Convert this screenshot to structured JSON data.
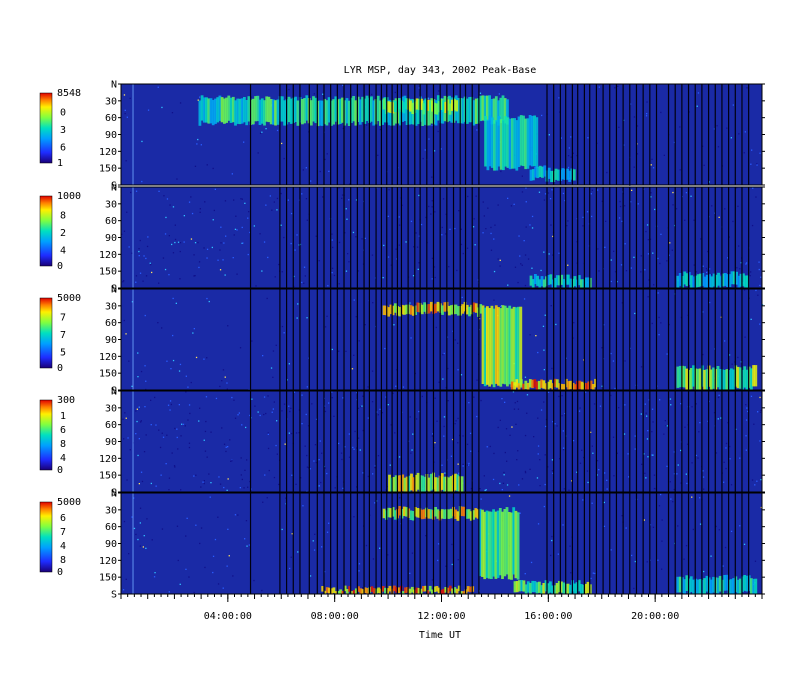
{
  "chart_data": {
    "type": "heatmap",
    "title": "LYR MSP, day 343, 2002 Peak-Base",
    "xlabel": "Time UT",
    "xlim_hours": [
      0,
      24
    ],
    "x_ticks": [
      {
        "hour": 4,
        "label": "04:00:00"
      },
      {
        "hour": 8,
        "label": "08:00:00"
      },
      {
        "hour": 12,
        "label": "12:00:00"
      },
      {
        "hour": 16,
        "label": "16:00:00"
      },
      {
        "hour": 20,
        "label": "20:00:00"
      }
    ],
    "y_labels": [
      {
        "value": "N",
        "deg": 0
      },
      {
        "value": "30",
        "deg": 30
      },
      {
        "value": "60",
        "deg": 60
      },
      {
        "value": "90",
        "deg": 90
      },
      {
        "value": "120",
        "deg": 120
      },
      {
        "value": "150",
        "deg": 150
      },
      {
        "value": "S",
        "deg": 180
      }
    ],
    "colorscale": [
      "#1a0078",
      "#1e2cff",
      "#00a0ff",
      "#00e0c0",
      "#80ff40",
      "#fff000",
      "#ff8000",
      "#e00000"
    ],
    "background_color": "#1a2aa6",
    "panels": [
      {
        "colorbar_max": "8548",
        "colorbar_min": "1",
        "colorbar_mid_labels": [
          "0",
          "3",
          "6"
        ],
        "noise": 0.18,
        "features": [
          {
            "t0": 2.9,
            "t1": 14.5,
            "lat0": 25,
            "lat1": 70,
            "level": 0.55
          },
          {
            "t0": 9.8,
            "t1": 12.6,
            "lat0": 30,
            "lat1": 50,
            "level": 0.75
          },
          {
            "t0": 13.6,
            "t1": 15.6,
            "lat0": 60,
            "lat1": 150,
            "level": 0.5
          },
          {
            "t0": 15.3,
            "t1": 17.0,
            "lat0": 150,
            "lat1": 170,
            "level": 0.45
          }
        ]
      },
      {
        "colorbar_max": "1000",
        "colorbar_min": "0",
        "colorbar_mid_labels": [
          "8",
          "2",
          "4"
        ],
        "noise": 0.45,
        "features": [
          {
            "t0": 15.3,
            "t1": 17.6,
            "lat0": 160,
            "lat1": 178,
            "level": 0.5
          },
          {
            "t0": 20.8,
            "t1": 23.5,
            "lat0": 155,
            "lat1": 178,
            "level": 0.45
          }
        ]
      },
      {
        "colorbar_max": "5000",
        "colorbar_min": "0",
        "colorbar_mid_labels": [
          "7",
          "7",
          "5"
        ],
        "noise": 0.2,
        "features": [
          {
            "t0": 9.8,
            "t1": 13.5,
            "lat0": 28,
            "lat1": 45,
            "level": 0.9
          },
          {
            "t0": 13.5,
            "t1": 15.0,
            "lat0": 30,
            "lat1": 170,
            "level": 0.75
          },
          {
            "t0": 14.6,
            "t1": 17.8,
            "lat0": 165,
            "lat1": 180,
            "level": 0.95
          },
          {
            "t0": 20.8,
            "t1": 23.8,
            "lat0": 140,
            "lat1": 178,
            "level": 0.7
          }
        ]
      },
      {
        "colorbar_max": "300",
        "colorbar_min": "0",
        "colorbar_mid_labels": [
          "1",
          "6",
          "8",
          "4"
        ],
        "noise": 0.55,
        "features": [
          {
            "t0": 10.0,
            "t1": 12.8,
            "lat0": 150,
            "lat1": 180,
            "level": 0.8
          }
        ]
      },
      {
        "colorbar_max": "5000",
        "colorbar_min": "0",
        "colorbar_mid_labels": [
          "6",
          "7",
          "4",
          "8"
        ],
        "noise": 0.2,
        "features": [
          {
            "t0": 9.8,
            "t1": 13.4,
            "lat0": 28,
            "lat1": 45,
            "level": 0.85
          },
          {
            "t0": 13.4,
            "t1": 14.9,
            "lat0": 30,
            "lat1": 150,
            "level": 0.6
          },
          {
            "t0": 14.7,
            "t1": 17.6,
            "lat0": 160,
            "lat1": 180,
            "level": 0.65
          },
          {
            "t0": 20.8,
            "t1": 23.8,
            "lat0": 150,
            "lat1": 178,
            "level": 0.5
          },
          {
            "t0": 7.5,
            "t1": 13.2,
            "lat0": 170,
            "lat1": 180,
            "level": 0.95
          }
        ]
      }
    ],
    "data_gap_hours": [
      4.85,
      5.95,
      6.2,
      6.45,
      6.7,
      7.05,
      7.35,
      7.6,
      7.85,
      8.1,
      8.35,
      8.6,
      8.85,
      9.1,
      9.3,
      9.55,
      9.75,
      9.95,
      10.15,
      10.35,
      10.5,
      10.75,
      11.0,
      11.2,
      11.45,
      11.7,
      11.95,
      12.2,
      12.45,
      12.7,
      12.9,
      13.15,
      13.4,
      15.95,
      16.2,
      16.45,
      16.65,
      16.9,
      17.1,
      17.35,
      17.55,
      17.8,
      18.05,
      18.3,
      18.55,
      18.8,
      19.05,
      19.3,
      19.55,
      19.8,
      20.05,
      20.5,
      20.75,
      21.0,
      21.25,
      21.5,
      21.75,
      22.0,
      22.25,
      22.5,
      22.75,
      23.0,
      23.25,
      23.5
    ]
  }
}
